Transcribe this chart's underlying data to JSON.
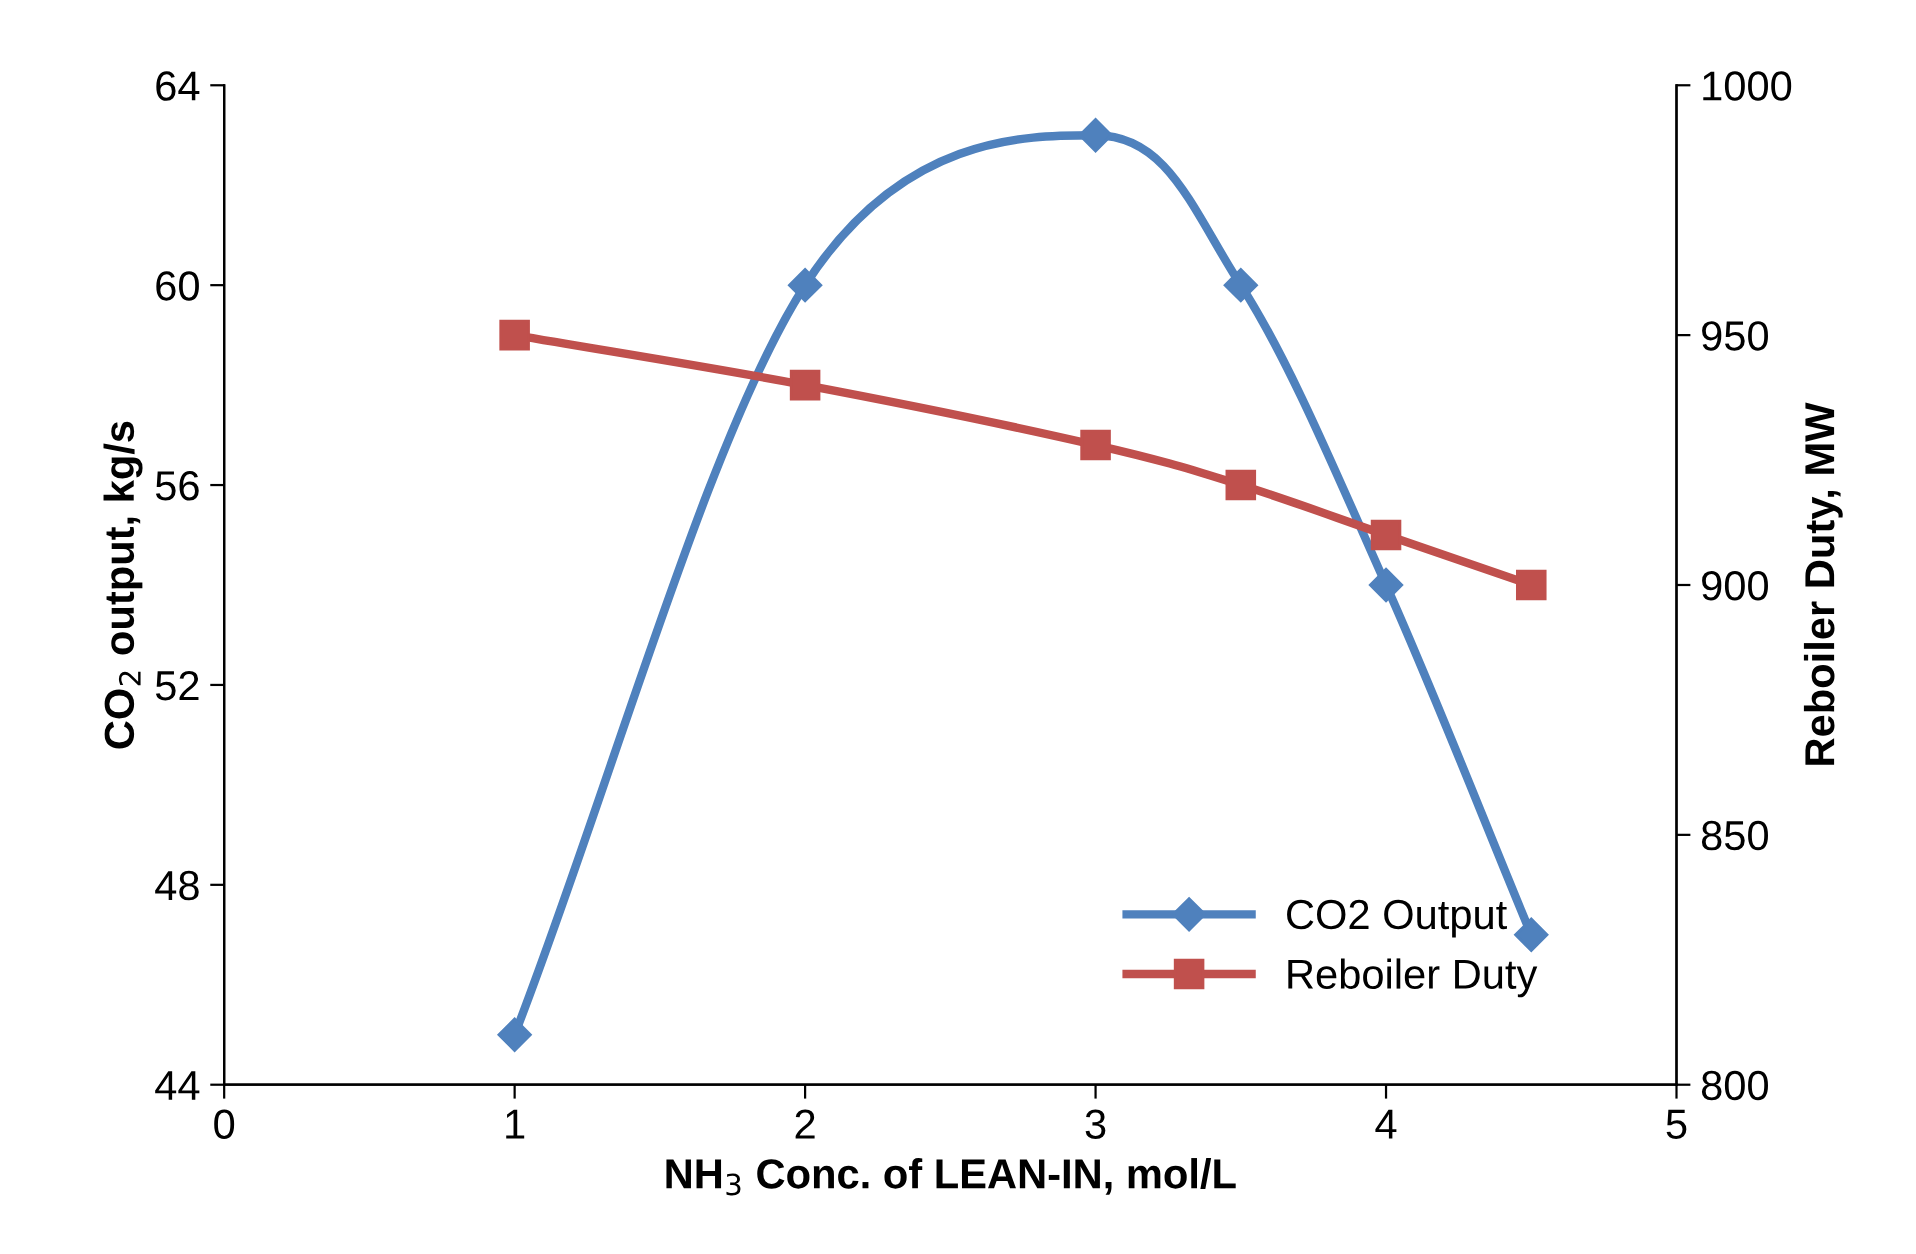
{
  "chart_data": {
    "type": "line",
    "xlabel": "NH$_{3}$ Conc. of LEAN-IN, mol/L",
    "ylabel": "CO$_{2}$ output, kg/s",
    "y2label": "Reboiler Duty, MW",
    "xlim": [
      0,
      5
    ],
    "xticks": [
      0,
      1,
      2,
      3,
      4,
      5
    ],
    "ylim": [
      44,
      64
    ],
    "yticks": [
      44,
      48,
      52,
      56,
      60,
      64
    ],
    "y2lim": [
      800,
      1000
    ],
    "y2ticks": [
      800,
      850,
      900,
      950,
      1000
    ],
    "grid": false,
    "legend": "bottom right",
    "line_style": "solid",
    "series": [
      {
        "name": "CO2 Output",
        "color": "#4f81bd",
        "marker": "diamond",
        "x": [
          1,
          2,
          3,
          3.5,
          4,
          4.5
        ],
        "values": [
          45,
          60,
          63,
          60,
          54,
          47
        ]
      },
      {
        "name": "Reboiler Duty",
        "color": "#c0504d",
        "marker": "square",
        "axis": "y2",
        "x": [
          1,
          2,
          3,
          3.5,
          4,
          4.5
        ],
        "values": [
          950,
          940,
          928,
          920,
          910,
          900
        ]
      }
    ]
  }
}
